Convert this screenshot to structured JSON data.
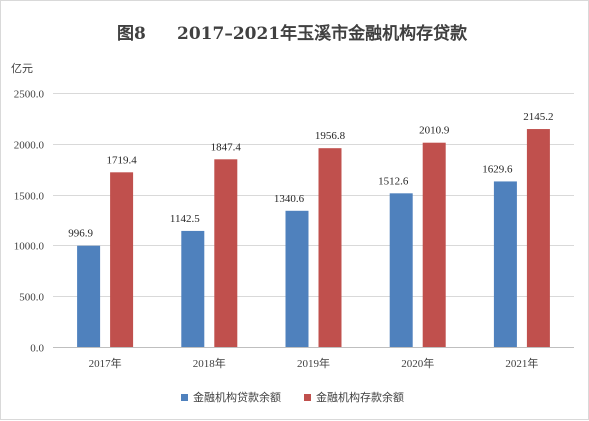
{
  "chart_data": {
    "type": "bar",
    "title_label": "图8",
    "title": "2017–2021年玉溪市金融机构存贷款",
    "unit_label": "亿元",
    "categories": [
      "2017年",
      "2018年",
      "2019年",
      "2020年",
      "2021年"
    ],
    "series": [
      {
        "name": "金融机构贷款余额",
        "color": "#4f81bd",
        "values": [
          996.9,
          1142.5,
          1340.6,
          1512.6,
          1629.6
        ],
        "labels": [
          "996.9",
          "1142.5",
          "1340.6",
          "1512.6",
          "1629.6"
        ]
      },
      {
        "name": "金融机构存款余额",
        "color": "#c0504d",
        "values": [
          1719.4,
          1847.4,
          1956.8,
          2010.9,
          2145.2
        ],
        "labels": [
          "1719.4",
          "1847.4",
          "1956.8",
          "2010.9",
          "2145.2"
        ]
      }
    ],
    "yticks": [
      0,
      500,
      1000,
      1500,
      2000,
      2500
    ],
    "ytick_labels": [
      "0.0",
      "500.0",
      "1000.0",
      "1500.0",
      "2000.0",
      "2500.0"
    ],
    "ylim": [
      0,
      2500
    ],
    "grid": true,
    "legend_position": "bottom"
  }
}
